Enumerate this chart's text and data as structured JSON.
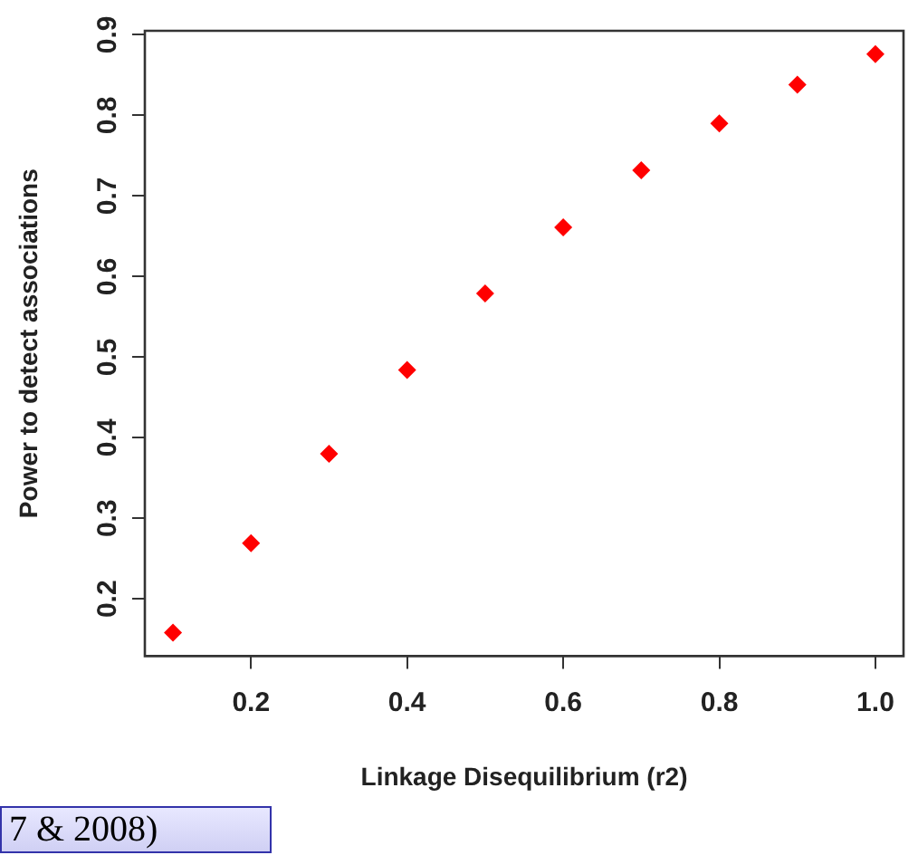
{
  "chart_data": {
    "type": "scatter",
    "xlabel": "Linkage Disequilibrium (r2)",
    "ylabel": "Power to detect associations",
    "annotations": [
      "7 & 2008)"
    ],
    "x": [
      0.1,
      0.2,
      0.3,
      0.4,
      0.5,
      0.6,
      0.7,
      0.8,
      0.9,
      1.0
    ],
    "series": [
      {
        "color": "#ff0000",
        "values": [
          0.158,
          0.269,
          0.38,
          0.484,
          0.579,
          0.661,
          0.732,
          0.79,
          0.838,
          0.876
        ]
      }
    ],
    "xlim": [
      0.064,
      1.036
    ],
    "ylim": [
      0.129,
      0.905
    ],
    "xticks": [
      0.2,
      0.4,
      0.6,
      0.8,
      {
        "value": 1,
        "label": "1.0"
      }
    ],
    "yticks": [
      0.2,
      0.3,
      0.4,
      0.5,
      0.6,
      0.7,
      0.8,
      0.9
    ],
    "grid": false,
    "legend": false,
    "marker": "diamond"
  }
}
